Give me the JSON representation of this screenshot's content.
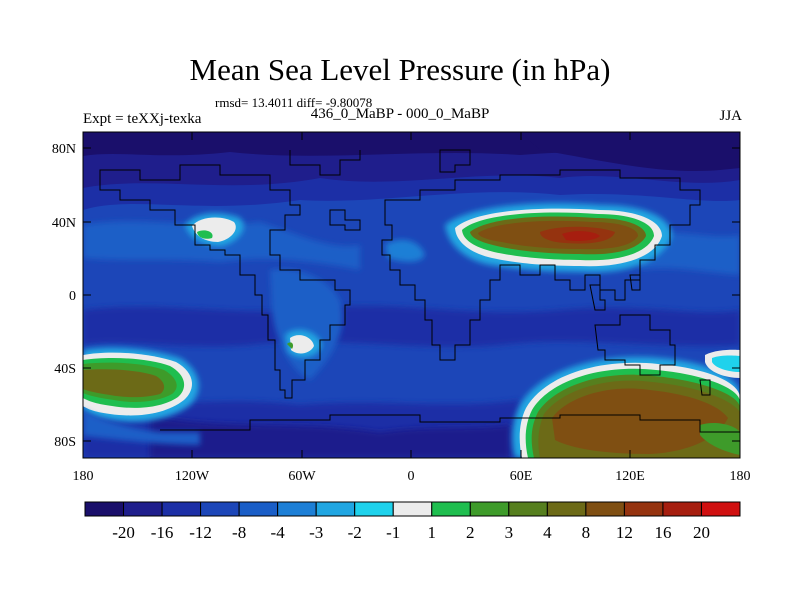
{
  "title": "Mean Sea Level Pressure (in hPa)",
  "stats": "rmsd= 13.4011 diff= -9.80078",
  "experiment": "Expt = teXXj-texka",
  "period": "436_0_MaBP - 000_0_MaBP",
  "season": "JJA",
  "lat_labels": [
    "80N",
    "40N",
    "0",
    "40S",
    "80S"
  ],
  "lon_labels": [
    "180",
    "120W",
    "60W",
    "0",
    "60E",
    "120E",
    "180"
  ],
  "colorbar": {
    "colors": [
      "#1a0f6b",
      "#1f1e8c",
      "#1c2fa6",
      "#1c46b8",
      "#1a5ec7",
      "#1d7fd6",
      "#20a6e2",
      "#1fd2ec",
      "#ececec",
      "#1fbe4f",
      "#3e9b2a",
      "#567f1e",
      "#6c6a17",
      "#7f4f12",
      "#95330f",
      "#a61e0f",
      "#d01010"
    ],
    "labels": [
      "-20",
      "-16",
      "-12",
      "-8",
      "-4",
      "-3",
      "-2",
      "-1",
      "1",
      "2",
      "3",
      "4",
      "8",
      "12",
      "16",
      "20"
    ]
  }
}
